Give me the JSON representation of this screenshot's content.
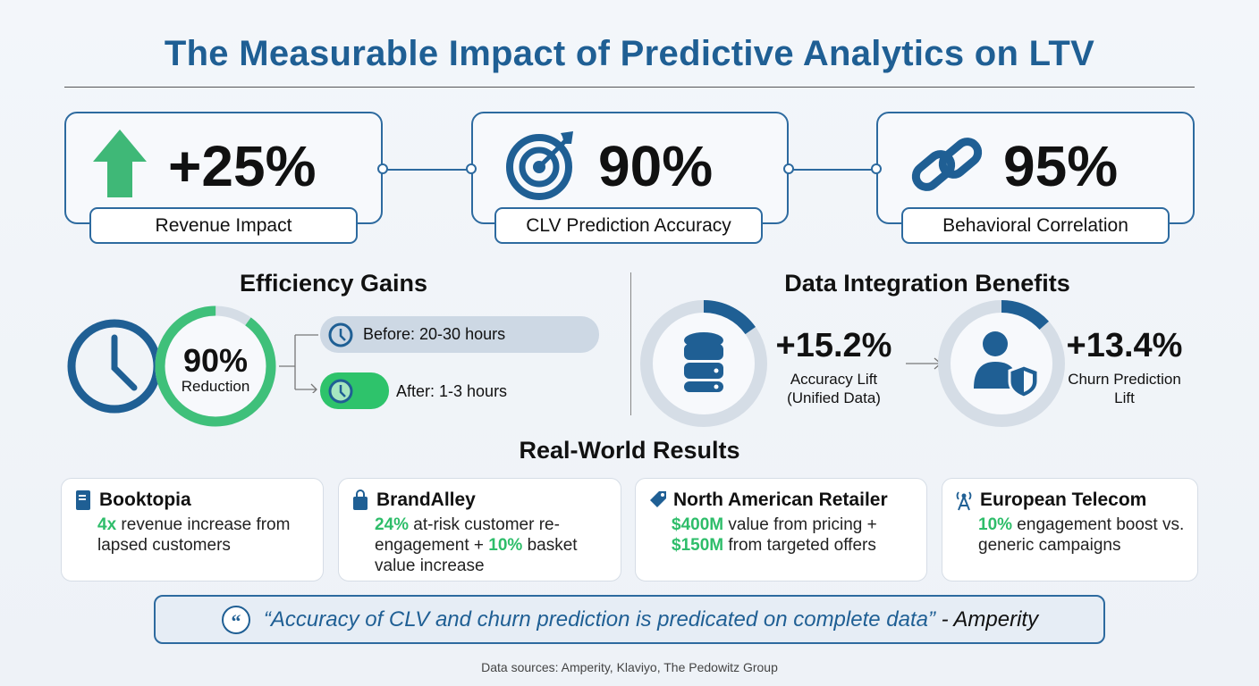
{
  "title": "The Measurable Impact of Predictive Analytics on LTV",
  "kpis": [
    {
      "value": "+25%",
      "label": "Revenue Impact",
      "icon": "arrow-up-icon"
    },
    {
      "value": "90%",
      "label": "CLV Prediction Accuracy",
      "icon": "target-icon"
    },
    {
      "value": "95%",
      "label": "Behavioral Correlation",
      "icon": "link-icon"
    }
  ],
  "efficiency": {
    "heading": "Efficiency Gains",
    "value": "90%",
    "label": "Reduction",
    "reduction_fraction": 0.9,
    "before": "Before: 20-30 hours",
    "after": "After: 1-3 hours"
  },
  "integration": {
    "heading": "Data Integration Benefits",
    "items": [
      {
        "value": "+15.2%",
        "label1": "Accuracy Lift",
        "label2": "(Unified Data)",
        "icon": "database-icon",
        "fraction": 0.152
      },
      {
        "value": "+13.4%",
        "label1": "Churn Prediction",
        "label2": "Lift",
        "icon": "user-shield-icon",
        "fraction": 0.134
      }
    ]
  },
  "results": {
    "heading": "Real-World Results",
    "cards": [
      {
        "name": "Booktopia",
        "icon": "book-icon",
        "parts": [
          {
            "t": "4x",
            "h": true
          },
          {
            "t": " revenue increase from lapsed customers"
          }
        ]
      },
      {
        "name": "BrandAlley",
        "icon": "shopping-bag-icon",
        "parts": [
          {
            "t": "24%",
            "h": true
          },
          {
            "t": " at-risk customer re-engagement + "
          },
          {
            "t": "10%",
            "h": true
          },
          {
            "t": " basket value increase"
          }
        ]
      },
      {
        "name": "North American Retailer",
        "icon": "tag-icon",
        "parts": [
          {
            "t": "$400M",
            "h": true
          },
          {
            "t": " value from pricing + "
          },
          {
            "t": "$150M",
            "h": true
          },
          {
            "t": " from targeted offers"
          }
        ]
      },
      {
        "name": "European Telecom",
        "icon": "antenna-icon",
        "parts": [
          {
            "t": "10%",
            "h": true
          },
          {
            "t": " engagement boost vs. generic campaigns"
          }
        ]
      }
    ]
  },
  "quote": {
    "text": "“Accuracy of CLV and churn prediction is predicated on complete data”",
    "author": " - Amperity"
  },
  "sources": "Data sources: Amperity, Klaviyo, The Pedowitz Group",
  "colors": {
    "blue": "#1f5f94",
    "green": "#2ebd6a",
    "gray": "#d5dde6"
  }
}
